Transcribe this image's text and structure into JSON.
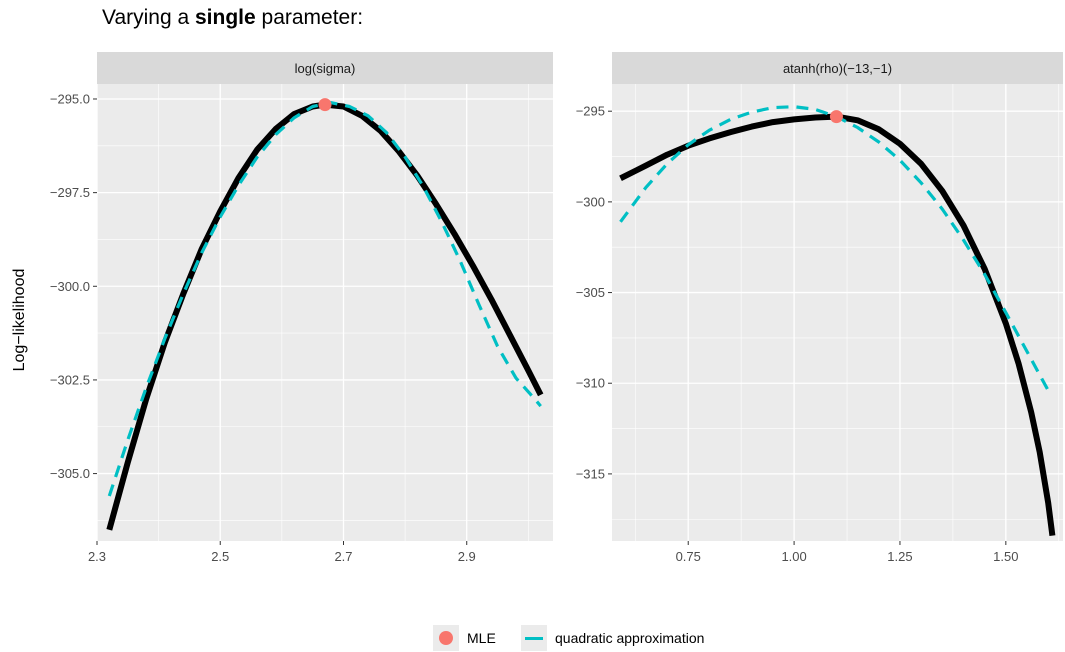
{
  "title": {
    "prefix": "Varying a ",
    "bold": "single",
    "suffix": " parameter:"
  },
  "ylabel": "Log−likelihood",
  "legend": {
    "mle_label": "MLE",
    "quad_label": "quadratic approximation"
  },
  "colors": {
    "panel_bg": "#ebebeb",
    "strip_bg": "#d9d9d9",
    "grid": "#ffffff",
    "likelihood": "#000000",
    "quadratic": "#00bfc4",
    "mle": "#f8766d"
  },
  "chart_data": [
    {
      "type": "line",
      "facet": "log(sigma)",
      "xlim": [
        2.3,
        3.04
      ],
      "ylim": [
        -306.8,
        -294.6
      ],
      "x_ticks": [
        2.3,
        2.5,
        2.7,
        2.9
      ],
      "x_tick_labels": [
        "2.3",
        "2.5",
        "2.7",
        "2.9"
      ],
      "y_ticks": [
        -295.0,
        -297.5,
        -300.0,
        -302.5,
        -305.0
      ],
      "y_tick_labels": [
        "−295.0",
        "−297.5",
        "−300.0",
        "−302.5",
        "−305.0"
      ],
      "mle": {
        "x": 2.67,
        "y": -295.15
      },
      "series": [
        {
          "name": "",
          "style": "solid",
          "x": [
            2.32,
            2.35,
            2.38,
            2.41,
            2.44,
            2.47,
            2.5,
            2.53,
            2.56,
            2.59,
            2.62,
            2.65,
            2.67,
            2.7,
            2.73,
            2.76,
            2.79,
            2.82,
            2.85,
            2.88,
            2.91,
            2.94,
            2.97,
            3.0,
            3.02
          ],
          "y": [
            -306.5,
            -304.7,
            -303.0,
            -301.5,
            -300.2,
            -299.0,
            -298.0,
            -297.1,
            -296.35,
            -295.8,
            -295.4,
            -295.2,
            -295.15,
            -295.2,
            -295.45,
            -295.85,
            -296.4,
            -297.05,
            -297.8,
            -298.6,
            -299.45,
            -300.35,
            -301.3,
            -302.25,
            -302.9
          ]
        },
        {
          "name": "quadratic approximation",
          "style": "dashed",
          "x": [
            2.32,
            2.35,
            2.38,
            2.41,
            2.44,
            2.47,
            2.5,
            2.53,
            2.56,
            2.59,
            2.62,
            2.65,
            2.68,
            2.71,
            2.74,
            2.77,
            2.8,
            2.83,
            2.86,
            2.89,
            2.92,
            2.95,
            2.98,
            3.01,
            3.02
          ],
          "y": [
            -305.6,
            -304.1,
            -302.7,
            -301.4,
            -300.2,
            -299.1,
            -298.15,
            -297.3,
            -296.55,
            -295.95,
            -295.5,
            -295.2,
            -295.1,
            -295.2,
            -295.45,
            -295.9,
            -296.55,
            -297.35,
            -298.3,
            -299.35,
            -300.5,
            -301.6,
            -302.45,
            -303.0,
            -303.2
          ]
        }
      ]
    },
    {
      "type": "line",
      "facet": "atanh(rho)(−13,−1)",
      "xlim": [
        0.57,
        1.635
      ],
      "ylim": [
        -318.7,
        -293.5
      ],
      "x_ticks": [
        0.75,
        1.0,
        1.25,
        1.5
      ],
      "x_tick_labels": [
        "0.75",
        "1.00",
        "1.25",
        "1.50"
      ],
      "y_ticks": [
        -295,
        -300,
        -305,
        -310,
        -315
      ],
      "y_tick_labels": [
        "−295",
        "−300",
        "−305",
        "−310",
        "−315"
      ],
      "mle": {
        "x": 1.1,
        "y": -295.3
      },
      "series": [
        {
          "name": "",
          "style": "solid",
          "x": [
            0.59,
            0.65,
            0.7,
            0.75,
            0.8,
            0.85,
            0.9,
            0.95,
            1.0,
            1.05,
            1.1,
            1.15,
            1.2,
            1.25,
            1.3,
            1.35,
            1.4,
            1.45,
            1.5,
            1.53,
            1.56,
            1.58,
            1.6,
            1.61
          ],
          "y": [
            -298.7,
            -298.0,
            -297.4,
            -296.9,
            -296.5,
            -296.15,
            -295.85,
            -295.6,
            -295.45,
            -295.35,
            -295.3,
            -295.5,
            -296.0,
            -296.8,
            -297.9,
            -299.4,
            -301.3,
            -303.7,
            -306.7,
            -308.9,
            -311.6,
            -313.8,
            -316.6,
            -318.4
          ]
        },
        {
          "name": "quadratic approximation",
          "style": "dashed",
          "x": [
            0.59,
            0.65,
            0.7,
            0.75,
            0.8,
            0.85,
            0.9,
            0.95,
            1.0,
            1.05,
            1.1,
            1.15,
            1.2,
            1.25,
            1.3,
            1.35,
            1.4,
            1.45,
            1.5,
            1.55,
            1.6
          ],
          "y": [
            -301.1,
            -299.2,
            -297.9,
            -296.85,
            -296.05,
            -295.45,
            -295.05,
            -294.8,
            -294.75,
            -294.9,
            -295.3,
            -295.9,
            -296.7,
            -297.7,
            -298.95,
            -300.4,
            -302.1,
            -304.0,
            -306.1,
            -308.25,
            -310.4
          ]
        }
      ]
    }
  ]
}
